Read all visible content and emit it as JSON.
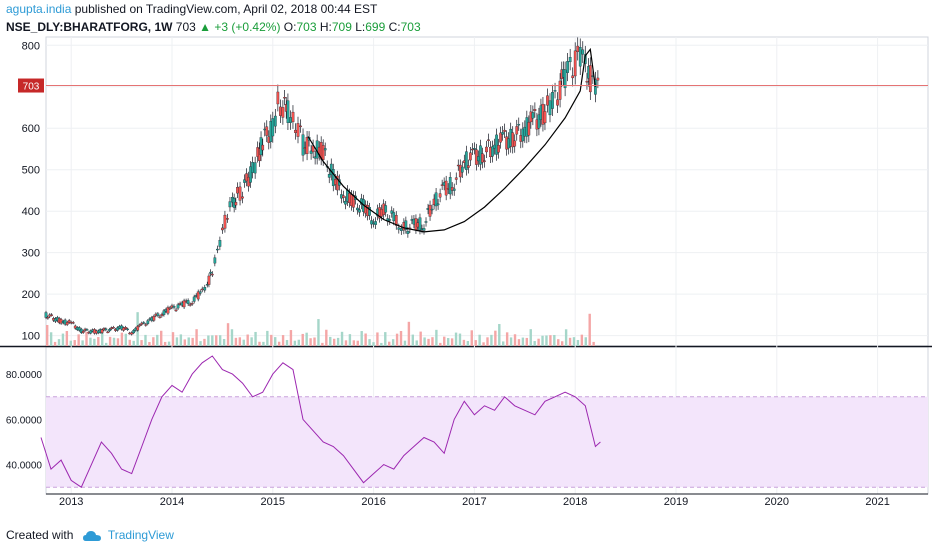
{
  "header": {
    "author": "agupta.india",
    "published": "published on TradingView.com, April 02, 2018 00:44 EST",
    "symbol": "NSE_DLY:BHARATFORG, 1W",
    "price": "703",
    "change": "+3 (+0.42%)",
    "o_label": "O:",
    "o_value": "703",
    "h_label": "H:",
    "h_value": "709",
    "l_label": "L:",
    "l_value": "699",
    "c_label": "C:",
    "c_value": "703"
  },
  "footer": {
    "created_with": "Created with",
    "brand": "TradingView"
  },
  "colors": {
    "up": "#26a69a",
    "down": "#ef5350",
    "up_volume": "#a5d6c9",
    "down_volume": "#f4a6a6",
    "rsi_line": "#9c27b0",
    "rsi_band": "#f3e5fb",
    "price_line": "#e57373",
    "pattern_curve": "#000000"
  },
  "chart_data": [
    {
      "type": "candlestick",
      "title": "NSE_DLY:BHARATFORG, 1W",
      "x_axis": {
        "ticks": [
          "2013",
          "2014",
          "2015",
          "2016",
          "2017",
          "2018",
          "2019",
          "2020",
          "2021"
        ],
        "range": [
          2012.75,
          2021.5
        ]
      },
      "y_axis": {
        "ticks": [
          "100",
          "200",
          "300",
          "400",
          "500",
          "600",
          "700",
          "800"
        ],
        "range": [
          75,
          820
        ]
      },
      "last_price_label": "703",
      "close_series": {
        "x": [
          2012.75,
          2012.9,
          2013.0,
          2013.1,
          2013.25,
          2013.4,
          2013.5,
          2013.6,
          2013.7,
          2013.8,
          2013.9,
          2014.0,
          2014.1,
          2014.2,
          2014.3,
          2014.35,
          2014.4,
          2014.45,
          2014.5,
          2014.55,
          2014.6,
          2014.65,
          2014.7,
          2014.8,
          2014.85,
          2014.9,
          2015.0,
          2015.05,
          2015.1,
          2015.15,
          2015.2,
          2015.25,
          2015.3,
          2015.4,
          2015.5,
          2015.6,
          2015.7,
          2015.8,
          2015.9,
          2016.0,
          2016.1,
          2016.2,
          2016.25,
          2016.3,
          2016.4,
          2016.5,
          2016.6,
          2016.7,
          2016.8,
          2016.9,
          2017.0,
          2017.1,
          2017.2,
          2017.3,
          2017.4,
          2017.5,
          2017.6,
          2017.7,
          2017.75,
          2017.8,
          2017.85,
          2017.9,
          2017.95,
          2018.0,
          2018.05,
          2018.1,
          2018.15,
          2018.2,
          2018.25
        ],
        "close": [
          150,
          135,
          130,
          112,
          110,
          115,
          120,
          108,
          125,
          140,
          155,
          165,
          175,
          185,
          205,
          220,
          260,
          300,
          350,
          400,
          420,
          440,
          450,
          500,
          530,
          570,
          600,
          660,
          650,
          640,
          620,
          600,
          560,
          550,
          540,
          480,
          440,
          420,
          410,
          380,
          400,
          380,
          370,
          360,
          365,
          370,
          420,
          450,
          470,
          520,
          530,
          540,
          560,
          570,
          580,
          600,
          620,
          640,
          660,
          670,
          700,
          730,
          750,
          760,
          780,
          760,
          720,
          700,
          703
        ]
      },
      "pattern_curve": {
        "x": [
          2015.35,
          2015.5,
          2015.7,
          2015.9,
          2016.1,
          2016.3,
          2016.5,
          2016.7,
          2016.9,
          2017.1,
          2017.3,
          2017.5,
          2017.7,
          2017.9,
          2018.05,
          2018.1,
          2018.15,
          2018.2
        ],
        "y": [
          580,
          520,
          460,
          415,
          380,
          360,
          350,
          355,
          375,
          410,
          455,
          505,
          560,
          625,
          690,
          775,
          790,
          700
        ]
      },
      "volume_note": "volume histogram shown along bottom of price pane"
    },
    {
      "type": "line",
      "title": "RSI",
      "y_axis": {
        "ticks": [
          "40.0000",
          "60.0000",
          "80.0000"
        ],
        "range": [
          27,
          92
        ]
      },
      "band": [
        30,
        70
      ],
      "series": [
        {
          "x": [
            2012.7,
            2012.8,
            2012.9,
            2013.0,
            2013.1,
            2013.2,
            2013.3,
            2013.4,
            2013.5,
            2013.6,
            2013.7,
            2013.8,
            2013.9,
            2014.0,
            2014.1,
            2014.2,
            2014.3,
            2014.4,
            2014.5,
            2014.6,
            2014.7,
            2014.8,
            2014.9,
            2015.0,
            2015.1,
            2015.2,
            2015.3,
            2015.4,
            2015.5,
            2015.6,
            2015.7,
            2015.8,
            2015.9,
            2016.0,
            2016.1,
            2016.2,
            2016.3,
            2016.4,
            2016.5,
            2016.6,
            2016.7,
            2016.8,
            2016.9,
            2017.0,
            2017.1,
            2017.2,
            2017.3,
            2017.4,
            2017.5,
            2017.6,
            2017.7,
            2017.8,
            2017.9,
            2018.0,
            2018.1,
            2018.2,
            2018.25
          ],
          "values": [
            52,
            38,
            42,
            33,
            30,
            40,
            50,
            45,
            38,
            36,
            48,
            60,
            70,
            75,
            72,
            80,
            85,
            88,
            82,
            80,
            76,
            70,
            72,
            80,
            85,
            82,
            60,
            55,
            50,
            48,
            44,
            38,
            32,
            36,
            40,
            38,
            44,
            48,
            52,
            50,
            45,
            60,
            68,
            62,
            66,
            64,
            70,
            66,
            64,
            62,
            68,
            70,
            72,
            70,
            66,
            48,
            50
          ]
        }
      ]
    }
  ]
}
